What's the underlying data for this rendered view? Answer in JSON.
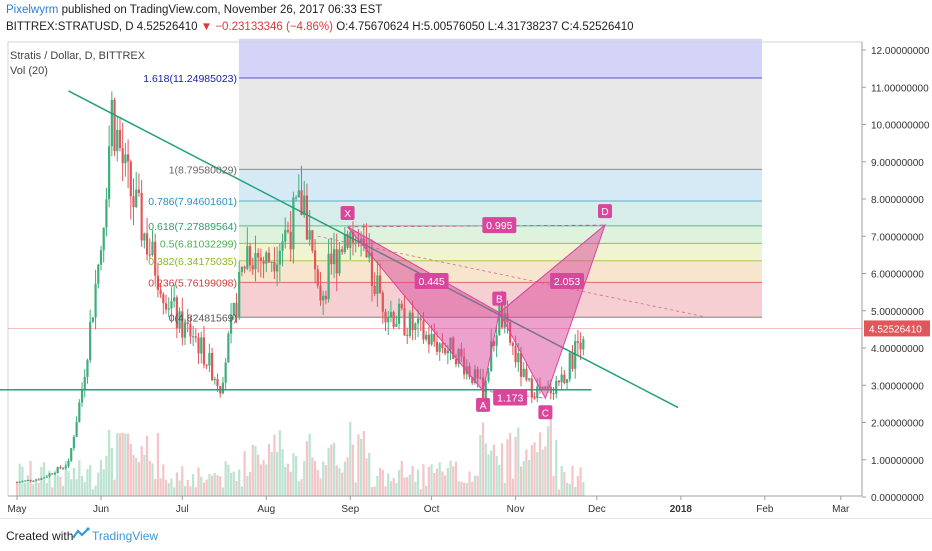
{
  "header": {
    "author": "Pixelwyrm",
    "published_text": " published on TradingView.com, November 26, 2017 06:33 EST",
    "symbol_line_prefix": "BITTREX:STRATUSD, D ",
    "last": "4.52526410",
    "change_arrow": "▼",
    "change": " −0.23133346 (−4.86%)",
    "ohlc": " O:4.75670624 H:5.00576050 L:4.31738237 C:4.52526410"
  },
  "overlay": {
    "title": "Stratis / Dollar, D, BITTREX",
    "volume_label": "Vol (20)"
  },
  "footer": {
    "created_with": "Created with",
    "brand": "TradingView"
  },
  "colors": {
    "up": "#3fae7c",
    "down": "#e0575b",
    "trendline": "#21a07a",
    "pattern": "#d9469c",
    "axis_text": "#333333"
  },
  "chart_data": {
    "type": "candlestick",
    "symbol": "BITTREX:STRATUSD",
    "interval": "D",
    "x_ticks": [
      "May",
      "Jun",
      "Jul",
      "Aug",
      "Sep",
      "Oct",
      "Nov",
      "Dec",
      "2018",
      "Feb",
      "Mar"
    ],
    "y_ticks": [
      "0.00000000",
      "1.00000000",
      "2.00000000",
      "3.00000000",
      "4.00000000",
      "5.00000000",
      "6.00000000",
      "7.00000000",
      "8.00000000",
      "9.00000000",
      "10.00000000",
      "11.00000000",
      "12.00000000"
    ],
    "ylim": [
      0,
      12.2
    ],
    "last_price_label": "4.52526410",
    "fib_levels": [
      {
        "label": "1.618(11.24985023)",
        "value": 11.24985023,
        "color": "#1a1ab0"
      },
      {
        "label": "1(8.79580029)",
        "value": 8.79580029,
        "color": "#666666"
      },
      {
        "label": "0.786(7.94601601)",
        "value": 7.94601601,
        "color": "#2a8fc4"
      },
      {
        "label": "0.618(7.27889564)",
        "value": 7.27889564,
        "color": "#2aa06a"
      },
      {
        "label": "0.5(6.81032299)",
        "value": 6.81032299,
        "color": "#4caf50"
      },
      {
        "label": "0.382(6.34175035)",
        "value": 6.34175035,
        "color": "#8bb820"
      },
      {
        "label": "0.236(5.76199098)",
        "value": 5.76199098,
        "color": "#d83a3a"
      },
      {
        "label": "0(4.82481569)",
        "value": 4.82481569,
        "color": "#555555"
      }
    ],
    "harmonic_points": [
      {
        "label": "X",
        "date": "2017-08-31",
        "price": 7.25
      },
      {
        "label": "A",
        "date": "2017-10-20",
        "price": 2.85
      },
      {
        "label": "B",
        "date": "2017-10-26",
        "price": 4.95
      },
      {
        "label": "C",
        "date": "2017-11-12",
        "price": 2.65
      },
      {
        "label": "D",
        "date": "2017-12-04",
        "price": 7.3
      }
    ],
    "ratios": [
      {
        "label": "0.445",
        "date": "2017-10-01",
        "price": 5.8
      },
      {
        "label": "0.995",
        "date": "2017-10-26",
        "price": 7.3
      },
      {
        "label": "1.173",
        "date": "2017-10-30",
        "price": 2.67
      },
      {
        "label": "2.053",
        "date": "2017-11-20",
        "price": 5.8
      }
    ],
    "trendline_down": [
      {
        "date": "2017-05-20",
        "price": 10.9
      },
      {
        "date": "2017-12-31",
        "price": 2.4
      }
    ],
    "support_line": {
      "price": 2.88
    },
    "series": [
      {
        "date": "2017-05-01",
        "close": 0.4
      },
      {
        "date": "2017-05-10",
        "close": 0.5
      },
      {
        "date": "2017-05-20",
        "close": 0.9
      },
      {
        "date": "2017-05-25",
        "close": 2.9
      },
      {
        "date": "2017-06-01",
        "close": 6.8
      },
      {
        "date": "2017-06-05",
        "close": 10.4
      },
      {
        "date": "2017-06-10",
        "close": 8.6
      },
      {
        "date": "2017-06-20",
        "close": 6.4
      },
      {
        "date": "2017-06-30",
        "close": 4.6
      },
      {
        "date": "2017-07-05",
        "close": 4.4
      },
      {
        "date": "2017-07-15",
        "close": 3.0
      },
      {
        "date": "2017-07-25",
        "close": 6.7
      },
      {
        "date": "2017-08-01",
        "close": 6.3
      },
      {
        "date": "2017-08-10",
        "close": 7.3
      },
      {
        "date": "2017-08-15",
        "close": 8.0
      },
      {
        "date": "2017-08-20",
        "close": 5.3
      },
      {
        "date": "2017-08-31",
        "close": 7.25
      },
      {
        "date": "2017-09-15",
        "close": 5.0
      },
      {
        "date": "2017-10-01",
        "close": 4.2
      },
      {
        "date": "2017-10-10",
        "close": 3.9
      },
      {
        "date": "2017-10-20",
        "close": 2.85
      },
      {
        "date": "2017-10-26",
        "close": 4.95
      },
      {
        "date": "2017-11-05",
        "close": 3.0
      },
      {
        "date": "2017-11-12",
        "close": 2.75
      },
      {
        "date": "2017-11-20",
        "close": 3.4
      },
      {
        "date": "2017-11-26",
        "close": 4.5252641
      }
    ]
  }
}
